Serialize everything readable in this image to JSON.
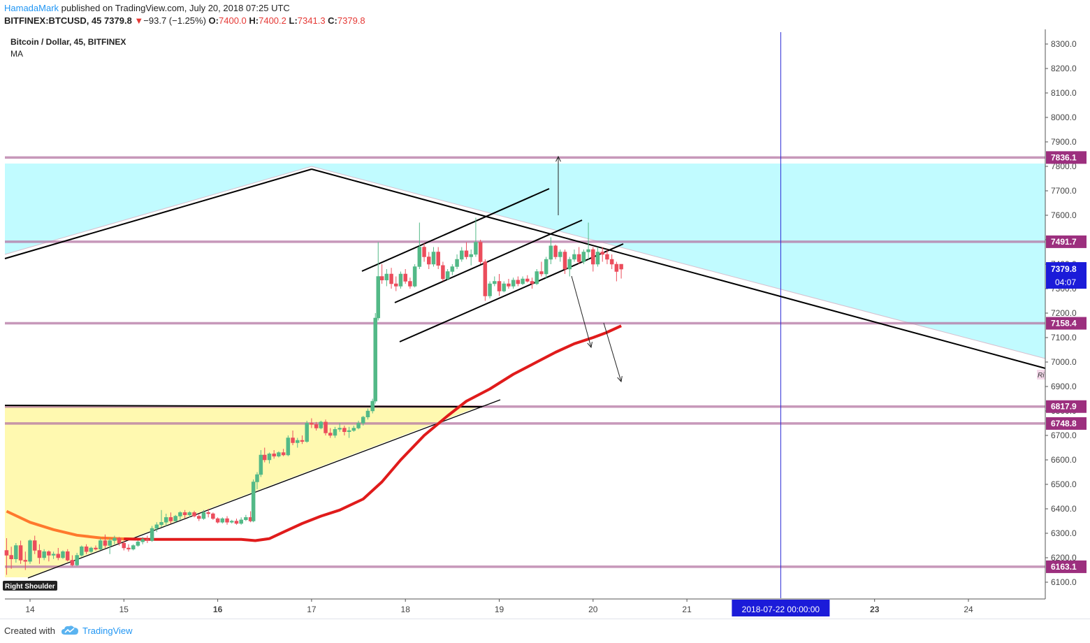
{
  "header": {
    "author": "HamadaMark",
    "published_text": "published on TradingView.com, July 20, 2018 07:25 UTC",
    "symbol": "BITFINEX:BTCUSD, 45",
    "last": "7379.8",
    "change_arrow": "▼",
    "change": "−93.7 (−1.25%)",
    "o_label": "O:",
    "o": "7400.0",
    "h_label": "H:",
    "h": "7400.2",
    "l_label": "L:",
    "l": "7341.3",
    "c_label": "C:",
    "c": "7379.8"
  },
  "legend": {
    "title": "Bitcoin / Dollar, 45, BITFINEX",
    "indicator": "MA"
  },
  "footer": {
    "created_with": "Created with",
    "brand": "TradingView",
    "logo_icon": "tradingview-cloud-icon"
  },
  "colors": {
    "up_candle": "#53b987",
    "down_candle": "#eb4d5c",
    "ma_line": "#e01b1b",
    "ma_early": "#ff6a1f",
    "level_line": "#b576a3",
    "cyan_zone": "#c1fbff",
    "yellow_zone": "#fff9b0",
    "price_label_bg": "#1b1bd9",
    "level_label_bg": "#9c2f7e",
    "vertical_line": "#2a2ad6"
  },
  "chart_data": {
    "type": "candlestick",
    "title": "Bitcoin / Dollar, 45, BITFINEX",
    "x_ticks": [
      "14",
      "15",
      "16",
      "17",
      "18",
      "19",
      "20",
      "21",
      "23",
      "24"
    ],
    "x_cursor_label": "2018-07-22 00:00:00",
    "y_ticks": [
      "6100.0",
      "6200.0",
      "6300.0",
      "6400.0",
      "6500.0",
      "6600.0",
      "6700.0",
      "6800.0",
      "6900.0",
      "7000.0",
      "7100.0",
      "7200.0",
      "7300.0",
      "7400.0",
      "7500.0",
      "7600.0",
      "7700.0",
      "7800.0",
      "7900.0",
      "8000.0",
      "8100.0",
      "8200.0",
      "8300.0"
    ],
    "ylim": [
      6035,
      8320
    ],
    "horizontal_levels": [
      {
        "value": 7836.1,
        "label": "7836.1"
      },
      {
        "value": 7491.7,
        "label": "7491.7"
      },
      {
        "value": 7158.4,
        "label": "7158.4"
      },
      {
        "value": 6817.9,
        "label": "6817.9"
      },
      {
        "value": 6748.8,
        "label": "6748.8"
      },
      {
        "value": 6163.1,
        "label": "6163.1"
      }
    ],
    "current_price": {
      "value": 7379.8,
      "label": "7379.8",
      "countdown": "04:07"
    },
    "annotations": [
      "Right Shoulder",
      "Ri"
    ],
    "ma_series": [
      [
        13.75,
        6390
      ],
      [
        14.0,
        6345
      ],
      [
        14.25,
        6315
      ],
      [
        14.5,
        6292
      ],
      [
        14.75,
        6281
      ],
      [
        15.0,
        6277
      ],
      [
        15.25,
        6275
      ],
      [
        15.5,
        6275
      ],
      [
        15.75,
        6275
      ],
      [
        16.0,
        6275
      ],
      [
        16.25,
        6275
      ],
      [
        16.4,
        6270
      ],
      [
        16.55,
        6278
      ],
      [
        16.7,
        6305
      ],
      [
        16.9,
        6340
      ],
      [
        17.1,
        6370
      ],
      [
        17.3,
        6395
      ],
      [
        17.55,
        6440
      ],
      [
        17.75,
        6510
      ],
      [
        17.95,
        6600
      ],
      [
        18.2,
        6700
      ],
      [
        18.45,
        6780
      ],
      [
        18.65,
        6840
      ],
      [
        18.9,
        6890
      ],
      [
        19.15,
        6950
      ],
      [
        19.4,
        7000
      ],
      [
        19.6,
        7040
      ],
      [
        19.8,
        7075
      ],
      [
        20.0,
        7100
      ],
      [
        20.14,
        7120
      ],
      [
        20.3,
        7148
      ]
    ],
    "candles": [
      [
        13.75,
        6230,
        6280,
        6130,
        6210
      ],
      [
        13.8,
        6210,
        6245,
        6155,
        6195
      ],
      [
        13.85,
        6195,
        6260,
        6180,
        6250
      ],
      [
        13.9,
        6250,
        6270,
        6175,
        6190
      ],
      [
        13.95,
        6190,
        6225,
        6150,
        6185
      ],
      [
        14.0,
        6185,
        6275,
        6175,
        6270
      ],
      [
        14.05,
        6270,
        6290,
        6215,
        6230
      ],
      [
        14.1,
        6230,
        6255,
        6175,
        6200
      ],
      [
        14.15,
        6200,
        6235,
        6190,
        6225
      ],
      [
        14.2,
        6225,
        6230,
        6185,
        6210
      ],
      [
        14.25,
        6210,
        6225,
        6195,
        6215
      ],
      [
        14.3,
        6215,
        6240,
        6190,
        6200
      ],
      [
        14.35,
        6200,
        6230,
        6195,
        6225
      ],
      [
        14.4,
        6225,
        6235,
        6185,
        6190
      ],
      [
        14.45,
        6190,
        6210,
        6165,
        6170
      ],
      [
        14.5,
        6170,
        6220,
        6165,
        6210
      ],
      [
        14.55,
        6210,
        6250,
        6205,
        6245
      ],
      [
        14.6,
        6245,
        6255,
        6215,
        6225
      ],
      [
        14.65,
        6225,
        6245,
        6220,
        6240
      ],
      [
        14.7,
        6240,
        6250,
        6230,
        6235
      ],
      [
        14.75,
        6235,
        6280,
        6230,
        6270
      ],
      [
        14.8,
        6270,
        6295,
        6240,
        6250
      ],
      [
        14.85,
        6250,
        6280,
        6215,
        6270
      ],
      [
        14.9,
        6270,
        6290,
        6255,
        6280
      ],
      [
        14.95,
        6280,
        6285,
        6250,
        6260
      ],
      [
        15.0,
        6260,
        6270,
        6230,
        6240
      ],
      [
        15.05,
        6240,
        6255,
        6225,
        6235
      ],
      [
        15.1,
        6235,
        6255,
        6230,
        6250
      ],
      [
        15.15,
        6250,
        6270,
        6245,
        6265
      ],
      [
        15.2,
        6265,
        6285,
        6255,
        6275
      ],
      [
        15.25,
        6275,
        6290,
        6260,
        6270
      ],
      [
        15.3,
        6270,
        6330,
        6265,
        6320
      ],
      [
        15.35,
        6320,
        6345,
        6305,
        6335
      ],
      [
        15.4,
        6335,
        6395,
        6325,
        6345
      ],
      [
        15.45,
        6345,
        6380,
        6330,
        6365
      ],
      [
        15.5,
        6365,
        6385,
        6340,
        6350
      ],
      [
        15.55,
        6350,
        6375,
        6345,
        6370
      ],
      [
        15.6,
        6370,
        6390,
        6355,
        6385
      ],
      [
        15.65,
        6385,
        6395,
        6360,
        6375
      ],
      [
        15.7,
        6375,
        6390,
        6365,
        6385
      ],
      [
        15.75,
        6385,
        6392,
        6365,
        6370
      ],
      [
        15.8,
        6370,
        6380,
        6350,
        6360
      ],
      [
        15.85,
        6360,
        6395,
        6355,
        6385
      ],
      [
        15.9,
        6385,
        6400,
        6365,
        6380
      ],
      [
        15.95,
        6380,
        6385,
        6355,
        6360
      ],
      [
        16.0,
        6360,
        6365,
        6340,
        6345
      ],
      [
        16.05,
        6345,
        6365,
        6340,
        6360
      ],
      [
        16.1,
        6360,
        6370,
        6335,
        6345
      ],
      [
        16.15,
        6345,
        6355,
        6340,
        6350
      ],
      [
        16.2,
        6350,
        6360,
        6335,
        6340
      ],
      [
        16.25,
        6340,
        6365,
        6335,
        6355
      ],
      [
        16.3,
        6355,
        6375,
        6350,
        6365
      ],
      [
        16.35,
        6365,
        6390,
        6345,
        6350
      ],
      [
        16.38,
        6350,
        6520,
        6345,
        6510
      ],
      [
        16.42,
        6510,
        6550,
        6480,
        6540
      ],
      [
        16.46,
        6540,
        6640,
        6530,
        6620
      ],
      [
        16.5,
        6620,
        6650,
        6590,
        6600
      ],
      [
        16.55,
        6600,
        6630,
        6585,
        6625
      ],
      [
        16.6,
        6625,
        6640,
        6605,
        6615
      ],
      [
        16.65,
        6615,
        6635,
        6610,
        6630
      ],
      [
        16.7,
        6630,
        6645,
        6615,
        6620
      ],
      [
        16.75,
        6620,
        6700,
        6615,
        6690
      ],
      [
        16.8,
        6690,
        6720,
        6660,
        6670
      ],
      [
        16.85,
        6670,
        6690,
        6650,
        6680
      ],
      [
        16.9,
        6680,
        6700,
        6665,
        6675
      ],
      [
        16.95,
        6675,
        6760,
        6670,
        6750
      ],
      [
        17.0,
        6750,
        6770,
        6730,
        6745
      ],
      [
        17.05,
        6745,
        6755,
        6720,
        6730
      ],
      [
        17.1,
        6730,
        6760,
        6725,
        6755
      ],
      [
        17.15,
        6755,
        6765,
        6700,
        6710
      ],
      [
        17.2,
        6710,
        6730,
        6690,
        6700
      ],
      [
        17.25,
        6700,
        6735,
        6690,
        6725
      ],
      [
        17.3,
        6725,
        6750,
        6715,
        6730
      ],
      [
        17.35,
        6730,
        6740,
        6700,
        6715
      ],
      [
        17.4,
        6715,
        6735,
        6690,
        6720
      ],
      [
        17.45,
        6720,
        6740,
        6715,
        6730
      ],
      [
        17.5,
        6730,
        6760,
        6725,
        6750
      ],
      [
        17.55,
        6750,
        6780,
        6740,
        6775
      ],
      [
        17.6,
        6775,
        6810,
        6765,
        6800
      ],
      [
        17.65,
        6800,
        6850,
        6790,
        6840
      ],
      [
        17.68,
        6840,
        7200,
        6830,
        7180
      ],
      [
        17.71,
        7180,
        7490,
        7170,
        7350
      ],
      [
        17.75,
        7350,
        7400,
        7320,
        7335
      ],
      [
        17.8,
        7335,
        7380,
        7310,
        7360
      ],
      [
        17.85,
        7360,
        7385,
        7300,
        7320
      ],
      [
        17.9,
        7320,
        7350,
        7290,
        7310
      ],
      [
        17.95,
        7310,
        7370,
        7300,
        7360
      ],
      [
        18.0,
        7360,
        7380,
        7320,
        7330
      ],
      [
        18.05,
        7330,
        7345,
        7300,
        7310
      ],
      [
        18.1,
        7310,
        7400,
        7305,
        7390
      ],
      [
        18.15,
        7390,
        7570,
        7380,
        7470
      ],
      [
        18.2,
        7470,
        7485,
        7410,
        7430
      ],
      [
        18.25,
        7430,
        7450,
        7380,
        7400
      ],
      [
        18.3,
        7400,
        7470,
        7390,
        7450
      ],
      [
        18.35,
        7450,
        7470,
        7380,
        7395
      ],
      [
        18.4,
        7395,
        7410,
        7330,
        7340
      ],
      [
        18.45,
        7340,
        7380,
        7335,
        7370
      ],
      [
        18.5,
        7370,
        7400,
        7355,
        7390
      ],
      [
        18.55,
        7390,
        7440,
        7380,
        7420
      ],
      [
        18.6,
        7420,
        7470,
        7410,
        7455
      ],
      [
        18.65,
        7455,
        7490,
        7420,
        7430
      ],
      [
        18.7,
        7430,
        7460,
        7395,
        7440
      ],
      [
        18.75,
        7440,
        7590,
        7430,
        7490
      ],
      [
        18.8,
        7490,
        7500,
        7400,
        7410
      ],
      [
        18.85,
        7410,
        7420,
        7250,
        7270
      ],
      [
        18.9,
        7270,
        7330,
        7260,
        7320
      ],
      [
        18.95,
        7320,
        7350,
        7310,
        7330
      ],
      [
        19.0,
        7330,
        7360,
        7270,
        7290
      ],
      [
        19.05,
        7290,
        7330,
        7285,
        7320
      ],
      [
        19.1,
        7320,
        7340,
        7300,
        7310
      ],
      [
        19.15,
        7310,
        7345,
        7300,
        7335
      ],
      [
        19.2,
        7335,
        7350,
        7310,
        7320
      ],
      [
        19.25,
        7320,
        7350,
        7315,
        7340
      ],
      [
        19.3,
        7340,
        7355,
        7325,
        7330
      ],
      [
        19.35,
        7330,
        7345,
        7300,
        7320
      ],
      [
        19.4,
        7320,
        7380,
        7315,
        7370
      ],
      [
        19.45,
        7370,
        7410,
        7350,
        7360
      ],
      [
        19.5,
        7360,
        7430,
        7340,
        7420
      ],
      [
        19.55,
        7420,
        7510,
        7400,
        7475
      ],
      [
        19.6,
        7475,
        7480,
        7420,
        7430
      ],
      [
        19.65,
        7430,
        7460,
        7410,
        7450
      ],
      [
        19.7,
        7450,
        7460,
        7360,
        7380
      ],
      [
        19.75,
        7380,
        7430,
        7350,
        7420
      ],
      [
        19.8,
        7420,
        7460,
        7410,
        7440
      ],
      [
        19.85,
        7440,
        7470,
        7400,
        7410
      ],
      [
        19.9,
        7410,
        7460,
        7400,
        7450
      ],
      [
        19.95,
        7450,
        7570,
        7420,
        7460
      ],
      [
        20.0,
        7460,
        7470,
        7370,
        7400
      ],
      [
        20.05,
        7400,
        7470,
        7390,
        7450
      ],
      [
        20.1,
        7450,
        7470,
        7410,
        7440
      ],
      [
        20.15,
        7440,
        7460,
        7400,
        7420
      ],
      [
        20.2,
        7420,
        7440,
        7380,
        7400
      ],
      [
        20.25,
        7400,
        7410,
        7330,
        7370
      ],
      [
        20.3,
        7400,
        7400.2,
        7341.3,
        7379.8
      ]
    ]
  }
}
